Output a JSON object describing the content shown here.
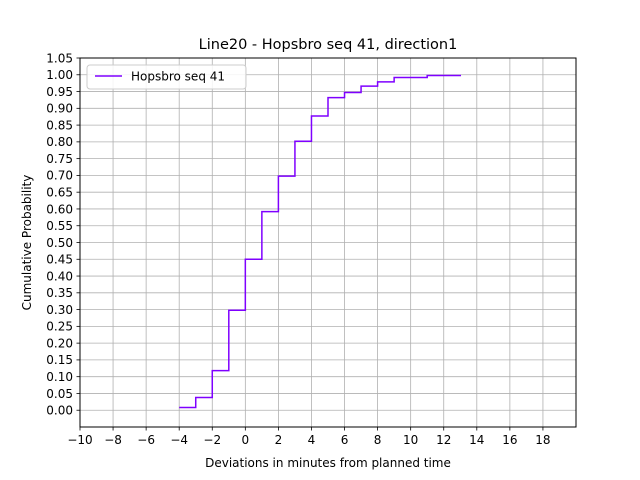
{
  "chart_data": {
    "type": "line",
    "step": true,
    "title": "Line20 - Hopsbro seq 41, direction1",
    "xlabel": "Deviations in minutes from planned time",
    "ylabel": "Cumulative Probability",
    "xlim": [
      -10,
      20
    ],
    "ylim": [
      -0.05,
      1.05
    ],
    "xticks": [
      -10,
      -8,
      -6,
      -4,
      -2,
      0,
      2,
      4,
      6,
      8,
      10,
      12,
      14,
      16,
      18
    ],
    "xtick_labels": [
      "−10",
      "−8",
      "−6",
      "−4",
      "−2",
      "0",
      "2",
      "4",
      "6",
      "8",
      "10",
      "12",
      "14",
      "16",
      "18"
    ],
    "yticks": [
      0,
      0.05,
      0.1,
      0.15,
      0.2,
      0.25,
      0.3,
      0.35,
      0.4,
      0.45,
      0.5,
      0.55,
      0.6,
      0.65,
      0.7,
      0.75,
      0.8,
      0.85,
      0.9,
      0.95,
      1.0,
      1.05
    ],
    "ytick_labels": [
      "0.00",
      "0.05",
      "0.10",
      "0.15",
      "0.20",
      "0.25",
      "0.30",
      "0.35",
      "0.40",
      "0.45",
      "0.50",
      "0.55",
      "0.60",
      "0.65",
      "0.70",
      "0.75",
      "0.80",
      "0.85",
      "0.90",
      "0.95",
      "1.00",
      "1.05"
    ],
    "grid": true,
    "legend_position": "top-left",
    "series": [
      {
        "name": "Hopsbro seq 41",
        "color": "#7f00ff",
        "x": [
          -4,
          -3,
          -2,
          -1,
          0,
          1,
          2,
          3,
          4,
          5,
          6,
          7,
          8,
          9,
          10,
          11,
          12,
          13
        ],
        "y": [
          0.008,
          0.038,
          0.118,
          0.298,
          0.45,
          0.592,
          0.698,
          0.802,
          0.877,
          0.932,
          0.947,
          0.966,
          0.979,
          0.992,
          0.992,
          0.998,
          0.998,
          1.0
        ]
      }
    ]
  }
}
